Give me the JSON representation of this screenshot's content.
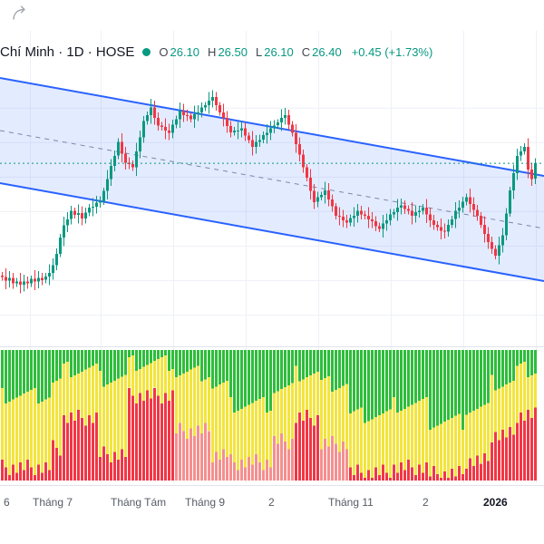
{
  "header": {
    "symbol_text": "Chí Minh · 1D · HOSE",
    "legend": {
      "o_label": "O",
      "o_value": "26.10",
      "h_label": "H",
      "h_value": "26.50",
      "l_label": "L",
      "l_value": "26.10",
      "c_label": "C",
      "c_value": "26.40",
      "change": "+0.45 (+1.73%)"
    }
  },
  "colors": {
    "up": "#089981",
    "down": "#f23645",
    "channel_line": "#2962ff",
    "channel_fill": "rgba(41,98,255,0.13)",
    "channel_mid": "#7d86a8",
    "grid": "#eef0f6",
    "separator": "#e0e3eb",
    "ind_green": "#2ebd3b",
    "ind_yellow": "#f3e43d",
    "ind_red": "#f23645",
    "ind_red_light": "#f58f8f",
    "axis_text": "#555b66",
    "axis_text_strong": "#131722",
    "legend_label": "#42464e",
    "header_text": "#131722",
    "icon": "#a3a6af"
  },
  "x_axis": {
    "ticks": [
      {
        "label": "6",
        "x": 4
      },
      {
        "label": "Tháng 7",
        "x": 36
      },
      {
        "label": "Tháng Tám",
        "x": 122
      },
      {
        "label": "Tháng 9",
        "x": 204
      },
      {
        "label": "2",
        "x": 296
      },
      {
        "label": "Tháng 11",
        "x": 362
      },
      {
        "label": "2",
        "x": 466
      },
      {
        "label": "2026",
        "x": 533,
        "strong": true
      }
    ],
    "grid_x": [
      33,
      111,
      191,
      271,
      351,
      431,
      511,
      591
    ]
  },
  "chart_data": {
    "type": "candlestick",
    "symbol": "Chí Minh",
    "timeframe": "1D",
    "exchange": "HOSE",
    "ohlc": {
      "open": 26.1,
      "high": 26.5,
      "low": 26.1,
      "close": 26.4,
      "change": 0.45,
      "change_pct": 1.73
    },
    "price_pane": {
      "ylim": [
        21.2,
        28.9
      ],
      "h_grid_prices": [
        22,
        23,
        24,
        25,
        26,
        27,
        28
      ],
      "price_line_value": 26.4,
      "first_open": 23.15,
      "closes": [
        23.1,
        23.0,
        23.08,
        22.92,
        22.98,
        22.88,
        22.97,
        22.92,
        23.05,
        22.98,
        23.08,
        23.02,
        23.12,
        23.22,
        23.45,
        23.78,
        24.25,
        24.6,
        24.78,
        25.02,
        24.9,
        24.96,
        24.8,
        24.97,
        25.12,
        25.14,
        25.26,
        25.3,
        25.6,
        25.95,
        26.32,
        26.62,
        27.02,
        26.68,
        26.42,
        26.38,
        26.28,
        26.75,
        27.15,
        27.62,
        27.8,
        28.02,
        27.72,
        27.5,
        27.45,
        27.35,
        27.28,
        27.52,
        27.68,
        27.92,
        27.8,
        27.78,
        27.68,
        27.82,
        27.88,
        28.02,
        28.08,
        28.22,
        28.32,
        28.08,
        27.88,
        27.72,
        27.48,
        27.3,
        27.35,
        27.35,
        27.42,
        27.2,
        27.08,
        26.88,
        27.02,
        27.08,
        27.22,
        27.28,
        27.42,
        27.5,
        27.58,
        27.72,
        27.8,
        27.52,
        27.28,
        26.95,
        26.65,
        26.28,
        25.98,
        25.6,
        25.28,
        25.42,
        25.48,
        25.62,
        25.35,
        25.15,
        24.88,
        24.85,
        24.75,
        24.68,
        24.82,
        24.88,
        25.02,
        24.92,
        24.88,
        24.78,
        24.72,
        24.58,
        24.5,
        24.65,
        24.75,
        24.92,
        24.98,
        25.12,
        25.18,
        25.08,
        25.02,
        24.88,
        24.98,
        25.02,
        25.12,
        24.92,
        24.75,
        24.62,
        24.55,
        24.45,
        24.42,
        24.62,
        24.78,
        25.02,
        25.12,
        25.28,
        25.42,
        25.22,
        25.05,
        24.88,
        24.62,
        24.35,
        24.12,
        23.92,
        23.72,
        24.02,
        24.32,
        24.95,
        25.62,
        26.12,
        26.62,
        26.75,
        26.88,
        26.22,
        25.95,
        26.4
      ],
      "channel": {
        "upper": [
          [
            0,
            86
          ],
          [
            600,
            194
          ]
        ],
        "lower": [
          [
            0,
            202
          ],
          [
            600,
            310
          ]
        ],
        "mid": [
          [
            0,
            144
          ],
          [
            600,
            252
          ]
        ]
      }
    },
    "indicator_pane": {
      "type": "stacked_percent_bars",
      "legend_colors": [
        "green",
        "yellow",
        "red"
      ],
      "jitter_amp": 0.015,
      "segments": [
        {
          "from": 0,
          "to": 13,
          "g": 0.35,
          "y": 0.55,
          "r": 0.1
        },
        {
          "from": 14,
          "to": 16,
          "g": 0.25,
          "y": 0.5,
          "r": 0.25
        },
        {
          "from": 17,
          "to": 26,
          "g": 0.15,
          "y": 0.37,
          "r": 0.48
        },
        {
          "from": 27,
          "to": 34,
          "g": 0.22,
          "y": 0.58,
          "r": 0.2
        },
        {
          "from": 35,
          "to": 47,
          "g": 0.1,
          "y": 0.25,
          "r": 0.65
        },
        {
          "from": 48,
          "to": 57,
          "g": 0.18,
          "y": 0.44,
          "r": 0.38,
          "light": true
        },
        {
          "from": 58,
          "to": 62,
          "g": 0.28,
          "y": 0.52,
          "r": 0.2,
          "light": true
        },
        {
          "from": 63,
          "to": 74,
          "g": 0.42,
          "y": 0.44,
          "r": 0.14,
          "light": true
        },
        {
          "from": 75,
          "to": 80,
          "g": 0.3,
          "y": 0.4,
          "r": 0.3,
          "light": true
        },
        {
          "from": 81,
          "to": 87,
          "g": 0.18,
          "y": 0.34,
          "r": 0.48
        },
        {
          "from": 88,
          "to": 95,
          "g": 0.26,
          "y": 0.46,
          "r": 0.28,
          "light": true
        },
        {
          "from": 96,
          "to": 107,
          "g": 0.5,
          "y": 0.44,
          "r": 0.06
        },
        {
          "from": 108,
          "to": 117,
          "g": 0.42,
          "y": 0.48,
          "r": 0.1
        },
        {
          "from": 118,
          "to": 127,
          "g": 0.55,
          "y": 0.4,
          "r": 0.05
        },
        {
          "from": 128,
          "to": 134,
          "g": 0.45,
          "y": 0.4,
          "r": 0.15
        },
        {
          "from": 135,
          "to": 141,
          "g": 0.25,
          "y": 0.4,
          "r": 0.35
        },
        {
          "from": 142,
          "to": 147,
          "g": 0.15,
          "y": 0.35,
          "r": 0.5
        }
      ]
    }
  }
}
